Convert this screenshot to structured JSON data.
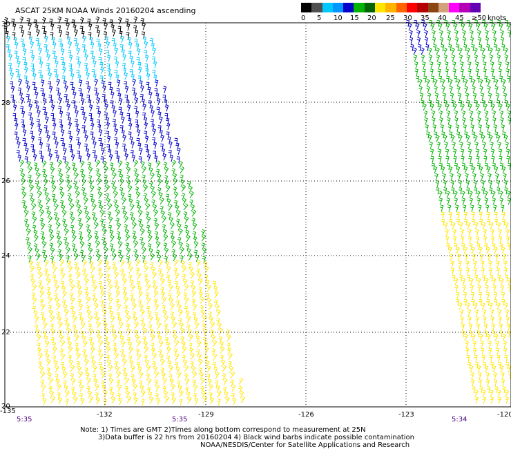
{
  "header": {
    "title": "ASCAT 25KM NOAA Winds 20160204 ascending",
    "units": "knots"
  },
  "legend": {
    "labels": [
      "0",
      "5",
      "10",
      "15",
      "20",
      "25",
      "30",
      "35",
      "40",
      "45",
      "≥50"
    ],
    "colors": [
      "#000000",
      "#505050",
      "#00c8ff",
      "#0096ff",
      "#0000c8",
      "#00b400",
      "#006400",
      "#ffe600",
      "#ffb400",
      "#ff6400",
      "#ff0000",
      "#b40000",
      "#8b4513",
      "#d2a07a",
      "#ff00ff",
      "#b400b4",
      "#6400b4"
    ]
  },
  "axes": {
    "lon_labels": [
      "-135",
      "-132",
      "-129",
      "-126",
      "-123",
      "-120"
    ],
    "lat_labels": [
      "30",
      "28",
      "26",
      "24",
      "22",
      "20"
    ],
    "grid": "dotted"
  },
  "swath_times": [
    "5:35",
    "5:35",
    "5:34"
  ],
  "notes": {
    "line1": "Note: 1) Times are GMT 2)Times along bottom correspond to measurement at 25N",
    "line2": "3)Data buffer is 22 hrs from 20160204 4) Black wind barbs indicate possible contamination",
    "line3": "NOAA/NESDIS/Center for Satellite Applications and Research"
  },
  "wind_colors": {
    "contaminated": "#000000",
    "light": "#00c8ff",
    "blue": "#0000c8",
    "green": "#00b400",
    "darkgreen": "#006400",
    "yellow": "#ffe600",
    "gold": "#e6b400"
  }
}
